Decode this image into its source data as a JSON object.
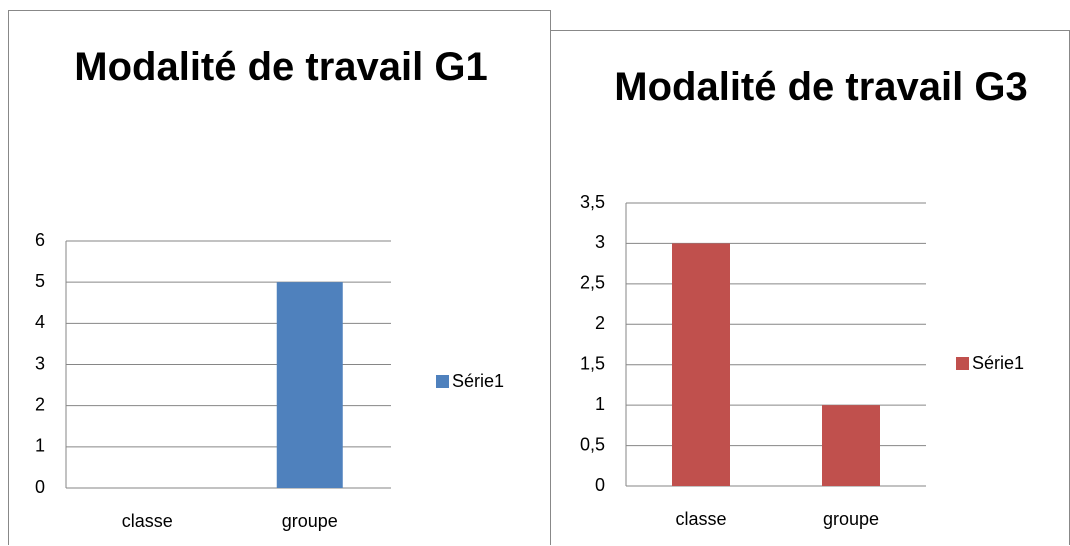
{
  "chart_data": [
    {
      "type": "bar",
      "title": "Modalité de travail G1",
      "categories": [
        "classe",
        "groupe"
      ],
      "series": [
        {
          "name": "Série1",
          "color": "#4f81bd",
          "values": [
            0,
            5
          ]
        }
      ],
      "ylim": [
        0,
        6
      ],
      "yticks": [
        0,
        1,
        2,
        3,
        4,
        5,
        6
      ],
      "grid": true,
      "legend": "right"
    },
    {
      "type": "bar",
      "title": "Modalité de travail G3",
      "categories": [
        "classe",
        "groupe"
      ],
      "series": [
        {
          "name": "Série1",
          "color": "#c0504d",
          "values": [
            3,
            1
          ]
        }
      ],
      "ylim": [
        0,
        3.5
      ],
      "yticks": [
        0,
        {
          "value": 0.5,
          "label": "0,5"
        },
        1,
        {
          "value": 1.5,
          "label": "1,5"
        },
        2,
        {
          "value": 2.5,
          "label": "2,5"
        },
        3,
        {
          "value": 3.5,
          "label": "3,5"
        }
      ],
      "grid": true,
      "legend": "right"
    }
  ]
}
